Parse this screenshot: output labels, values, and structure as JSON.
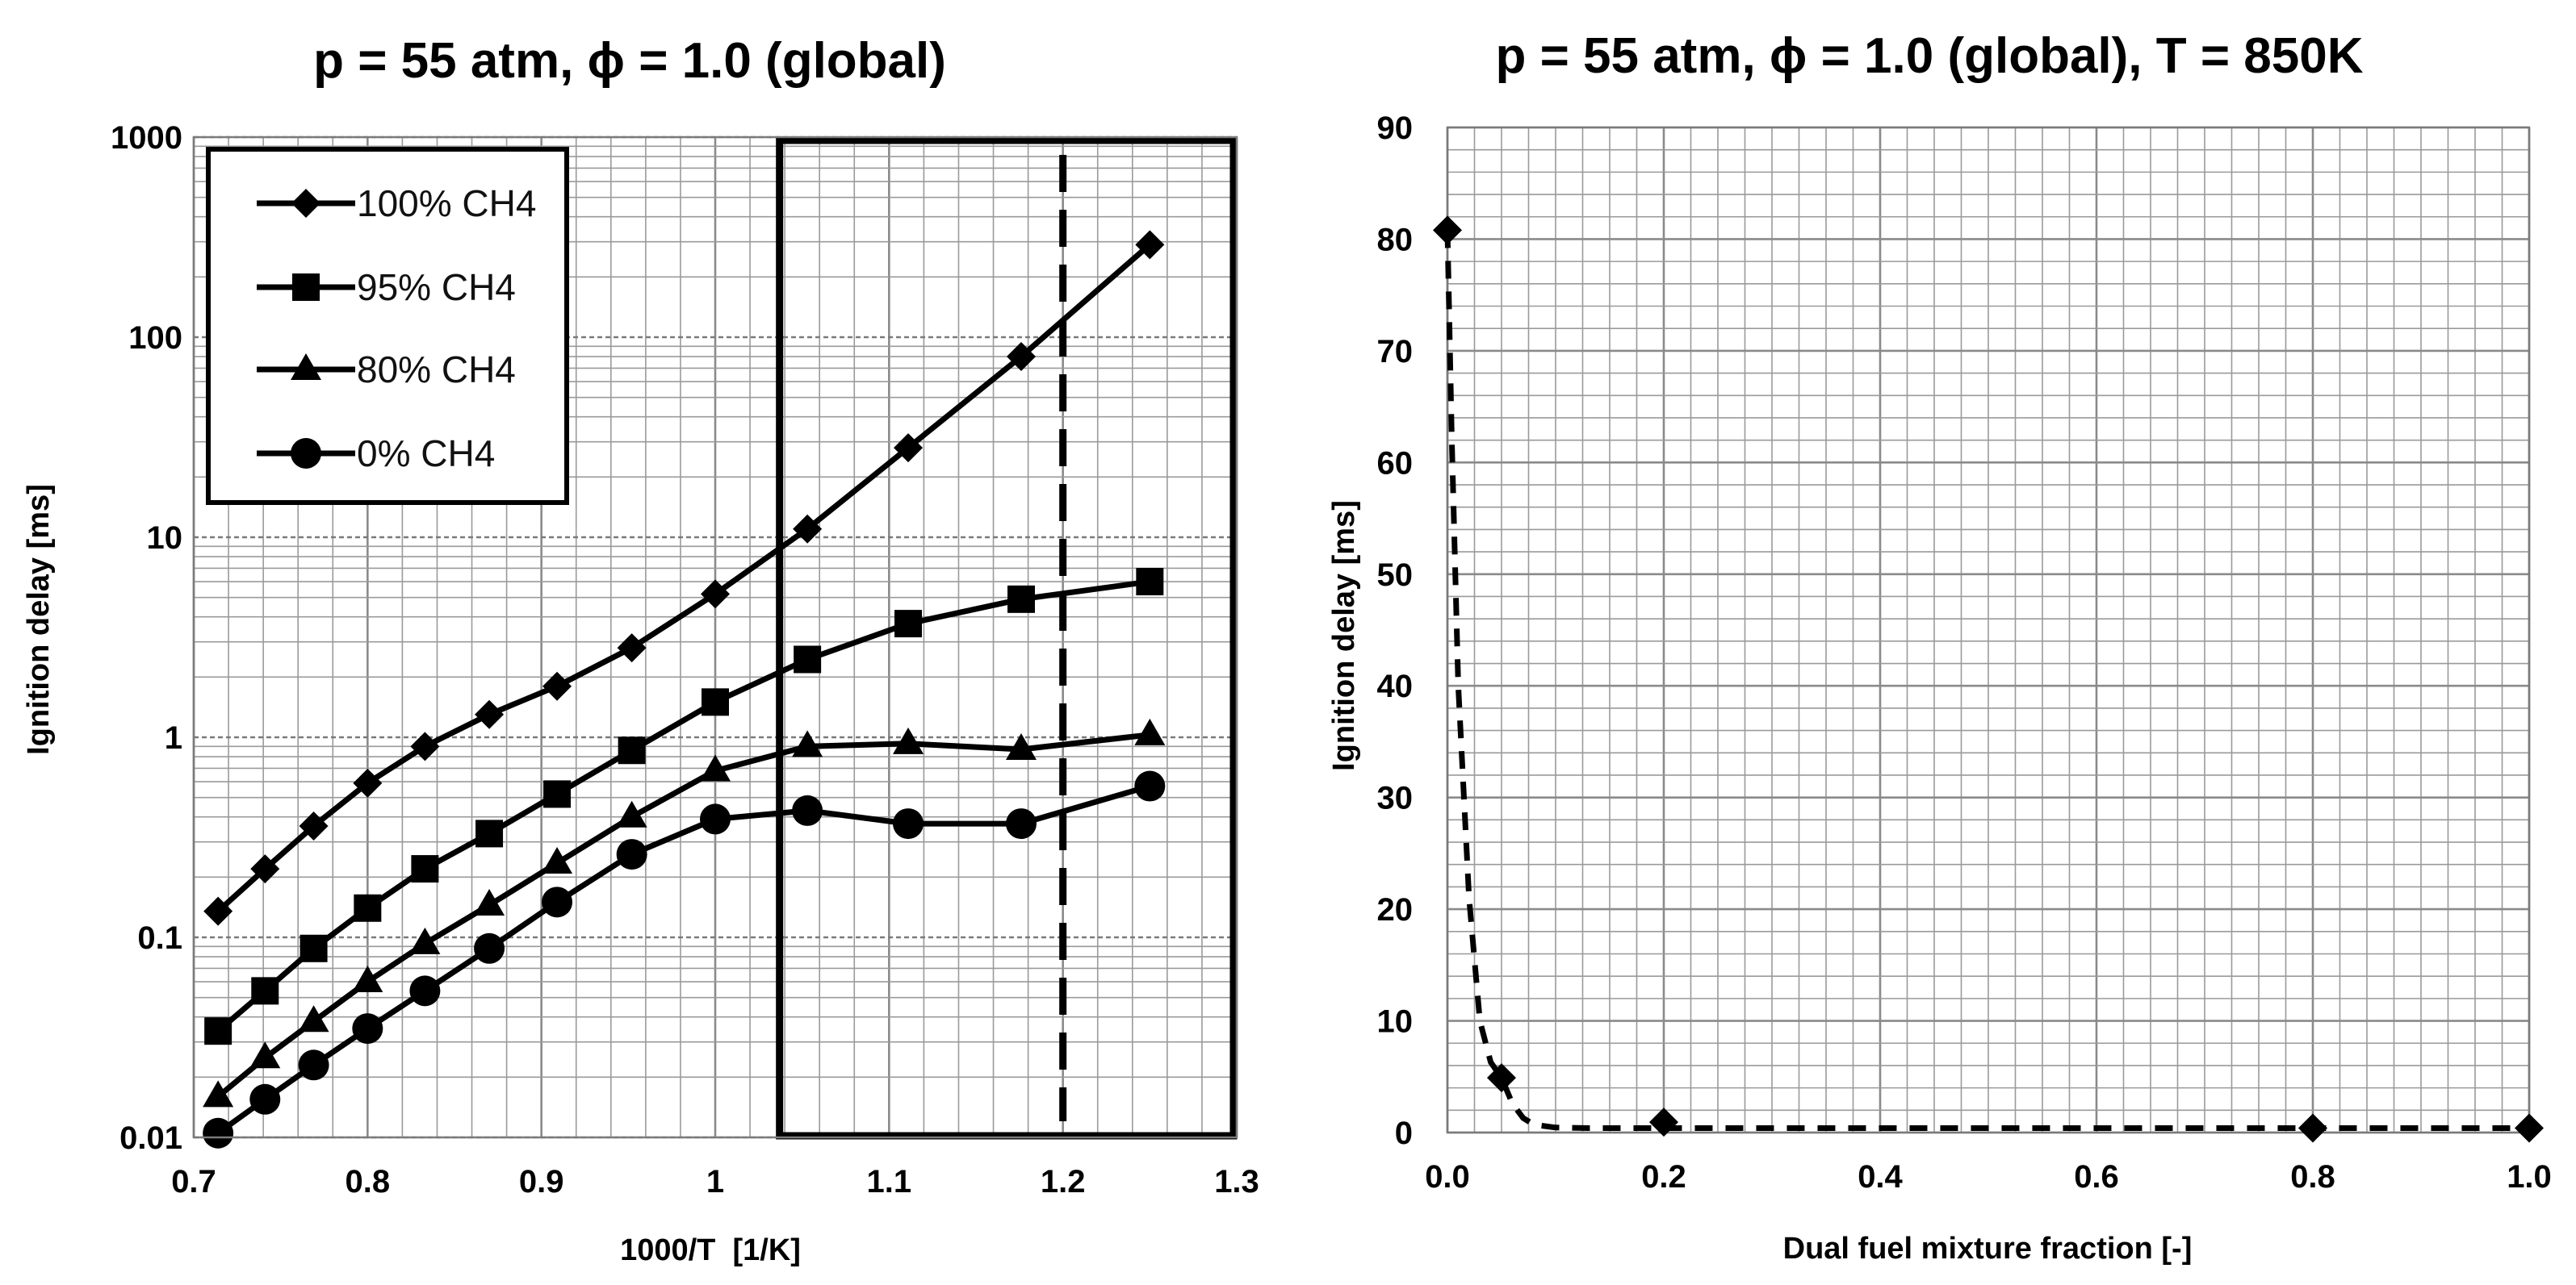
{
  "chart_data": [
    {
      "type": "line",
      "title": "p = 55 atm, ϕ = 1.0 (global)",
      "xlabel": "1000/T  [1/K]",
      "ylabel": "Ignition delay [ms]",
      "xlim": [
        0.7,
        1.3
      ],
      "ylim": [
        0.01,
        1000
      ],
      "yscale": "log",
      "grid": true,
      "x_ticks": [
        "0.7",
        "0.8",
        "0.9",
        "1",
        "1.1",
        "1.2",
        "1.3"
      ],
      "y_ticks": [
        "0.01",
        "0.1",
        "1",
        "10",
        "100",
        "1000"
      ],
      "legend_position": "top-left",
      "x": [
        0.714,
        0.741,
        0.769,
        0.8,
        0.833,
        0.87,
        0.909,
        0.952,
        1.0,
        1.053,
        1.111,
        1.176,
        1.25
      ],
      "series": [
        {
          "name": "100% CH4",
          "marker": "diamond",
          "values": [
            0.135,
            0.22,
            0.36,
            0.59,
            0.9,
            1.3,
            1.8,
            2.8,
            5.2,
            11,
            28,
            80,
            290
          ]
        },
        {
          "name": "95% CH4",
          "marker": "square",
          "values": [
            0.034,
            0.054,
            0.088,
            0.14,
            0.22,
            0.33,
            0.52,
            0.86,
            1.5,
            2.45,
            3.7,
            4.9,
            6.0
          ]
        },
        {
          "name": "80% CH4",
          "marker": "triangle",
          "values": [
            0.016,
            0.025,
            0.038,
            0.06,
            0.093,
            0.145,
            0.235,
            0.4,
            0.68,
            0.9,
            0.93,
            0.87,
            1.03
          ]
        },
        {
          "name": "0% CH4",
          "marker": "circle",
          "values": [
            0.0105,
            0.0155,
            0.023,
            0.035,
            0.054,
            0.088,
            0.15,
            0.26,
            0.39,
            0.43,
            0.37,
            0.37,
            0.57
          ]
        }
      ],
      "annotations": [
        {
          "kind": "highlight-box",
          "x_range": [
            1.037,
            1.3
          ],
          "y_range": [
            0.01,
            1000
          ]
        },
        {
          "kind": "dashed-vertical-line",
          "x": 1.2,
          "note": "T = 850K"
        }
      ]
    },
    {
      "type": "scatter",
      "title": "p = 55 atm, ϕ = 1.0 (global), T = 850K",
      "xlabel": "Dual fuel mixture fraction [-]",
      "ylabel": "Ignition delay [ms]",
      "xlim": [
        0.0,
        1.0
      ],
      "ylim": [
        0,
        90
      ],
      "grid": true,
      "x_ticks": [
        "0.0",
        "0.2",
        "0.4",
        "0.6",
        "0.8",
        "1.0"
      ],
      "y_ticks": [
        "0",
        "10",
        "20",
        "30",
        "40",
        "50",
        "60",
        "70",
        "80",
        "90"
      ],
      "marker": "diamond",
      "trendline": "dashed",
      "x": [
        0.0,
        0.05,
        0.2,
        0.8,
        1.0
      ],
      "values": [
        80.8,
        4.9,
        0.93,
        0.4,
        0.4
      ],
      "trend_x": [
        0.0,
        0.004,
        0.01,
        0.02,
        0.03,
        0.04,
        0.05,
        0.06,
        0.07,
        0.08,
        0.1,
        0.13,
        0.2,
        0.4,
        0.6,
        0.8,
        1.0
      ],
      "trend_y": [
        80.8,
        62,
        40,
        21,
        10,
        6.3,
        4.9,
        2.6,
        1.3,
        0.7,
        0.45,
        0.4,
        0.4,
        0.4,
        0.4,
        0.4,
        0.4
      ]
    }
  ]
}
